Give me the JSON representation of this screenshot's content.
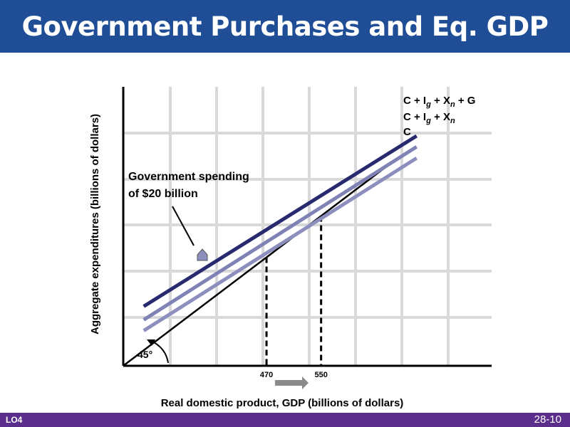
{
  "slide": {
    "title": "Government Purchases and Eq. GDP",
    "footer_left": "LO4",
    "footer_right": "28-10"
  },
  "colors": {
    "title_bar": "#1f4e96",
    "footer_bar": "#5a2e8a",
    "line_G": "#272a6e",
    "line_Ig_Xn": "#7f82b4",
    "line_C": "#8c8fbd",
    "line_45": "#000000",
    "grid": "#d9d9d9",
    "arrow": "#8a8a8a"
  },
  "chart_data": {
    "type": "line",
    "xlabel": "Real domestic product, GDP (billions of dollars)",
    "ylabel": "Aggregate expenditures (billions of dollars)",
    "x_ticks": [
      "470",
      "550"
    ],
    "x_tick_values": [
      470,
      550
    ],
    "axis_domain": {
      "x": [
        260,
        800
      ],
      "y": [
        260,
        800
      ]
    },
    "series": [
      {
        "name": "C + Ig + Xn + G",
        "label_parts": [
          "C + I",
          "g",
          " + X",
          "n",
          " + G"
        ],
        "x": [
          290,
          690
        ],
        "y": [
          375,
          705
        ],
        "color_key": "line_G"
      },
      {
        "name": "C + Ig + Xn",
        "label_parts": [
          "C + I",
          "g",
          " + X",
          "n"
        ],
        "x": [
          290,
          690
        ],
        "y": [
          349,
          684
        ],
        "color_key": "line_Ig_Xn"
      },
      {
        "name": "C",
        "label_parts": [
          "C"
        ],
        "x": [
          290,
          690
        ],
        "y": [
          328,
          662
        ],
        "color_key": "line_C"
      },
      {
        "name": "45° line",
        "x": [
          260,
          664
        ],
        "y": [
          260,
          664
        ],
        "color_key": "line_45"
      }
    ],
    "equilibria": [
      {
        "x": 470,
        "y": 470
      },
      {
        "x": 550,
        "y": 550
      }
    ],
    "annotations": {
      "gov_spending_line1": "Government spending",
      "gov_spending_line2": "of $20 billion",
      "angle": "45°"
    },
    "grid": true
  }
}
